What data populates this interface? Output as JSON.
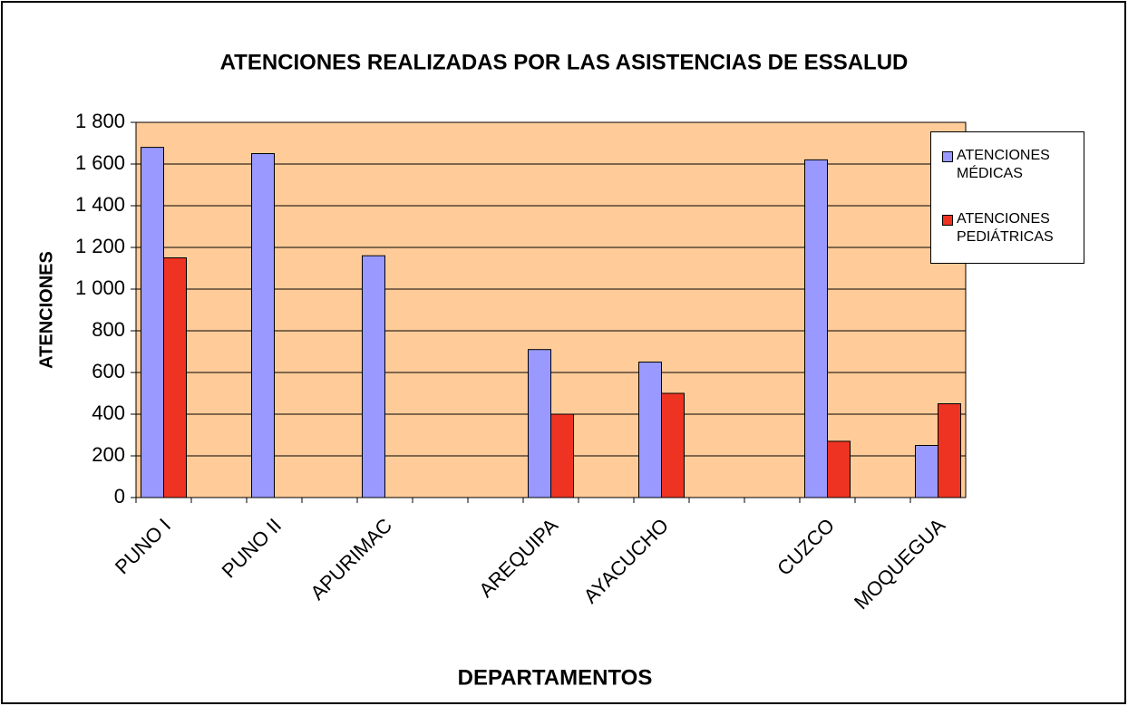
{
  "chart_data": {
    "type": "bar",
    "title": "ATENCIONES REALIZADAS POR LAS ASISTENCIAS DE ESSALUD",
    "x_label": "DEPARTAMENTOS",
    "y_label": "ATENCIONES",
    "categories": [
      "PUNO I",
      null,
      "PUNO II",
      null,
      "APURIMAC",
      null,
      null,
      "AREQUIPA",
      null,
      "AYACUCHO",
      null,
      null,
      "CUZCO",
      null,
      "MOQUEGUA"
    ],
    "series": [
      {
        "name": "ATENCIONES MÉDICAS",
        "color": "#9999ff",
        "values": [
          1680,
          null,
          1650,
          null,
          1160,
          null,
          null,
          710,
          null,
          650,
          null,
          null,
          1620,
          null,
          250
        ]
      },
      {
        "name": "ATENCIONES PEDIÁTRICAS",
        "color": "#ee3322",
        "values": [
          1150,
          null,
          null,
          null,
          null,
          null,
          null,
          400,
          null,
          500,
          null,
          null,
          270,
          null,
          450
        ]
      }
    ],
    "ylim": [
      0,
      1800
    ],
    "yticks": [
      0,
      200,
      400,
      600,
      800,
      {
        "value": 1000,
        "label": "1 000"
      },
      {
        "value": 1200,
        "label": "1 200"
      },
      {
        "value": 1400,
        "label": "1 400"
      },
      {
        "value": 1600,
        "label": "1 600"
      },
      {
        "value": 1800,
        "label": "1 800"
      }
    ],
    "grid": true,
    "background": "#ffcc99",
    "legend": "upper right"
  }
}
